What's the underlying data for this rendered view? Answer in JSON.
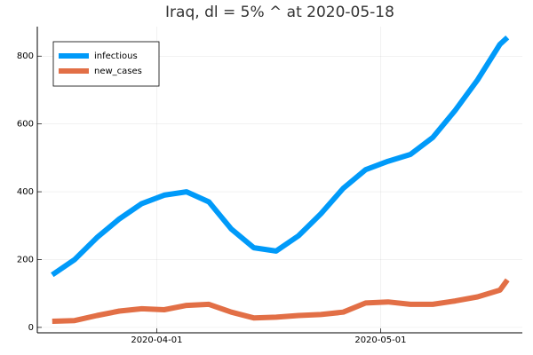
{
  "chart_data": {
    "type": "line",
    "title": "Iraq,  dl = 5% ^ at 2020-05-18",
    "x": [
      "2020-03-18",
      "2020-03-21",
      "2020-03-24",
      "2020-03-27",
      "2020-03-30",
      "2020-04-02",
      "2020-04-05",
      "2020-04-08",
      "2020-04-11",
      "2020-04-14",
      "2020-04-17",
      "2020-04-20",
      "2020-04-23",
      "2020-04-26",
      "2020-04-29",
      "2020-05-02",
      "2020-05-05",
      "2020-05-08",
      "2020-05-11",
      "2020-05-14",
      "2020-05-17",
      "2020-05-18"
    ],
    "series": [
      {
        "name": "infectious",
        "color": "#009af9",
        "values": [
          155,
          200,
          265,
          320,
          365,
          390,
          400,
          370,
          290,
          235,
          225,
          270,
          335,
          410,
          465,
          490,
          510,
          560,
          640,
          730,
          835,
          855
        ]
      },
      {
        "name": "new_cases",
        "color": "#e26f46",
        "values": [
          18,
          20,
          35,
          48,
          55,
          52,
          65,
          68,
          45,
          28,
          30,
          35,
          38,
          45,
          72,
          75,
          68,
          68,
          78,
          90,
          110,
          140
        ]
      }
    ],
    "xlim": [
      "2020-03-16",
      "2020-05-20"
    ],
    "xticks": [
      "2020-04-01",
      "2020-05-01"
    ],
    "ylim": [
      -16,
      887
    ],
    "yticks": [
      0,
      200,
      400,
      600,
      800
    ],
    "grid": true,
    "legend": "top-left"
  }
}
